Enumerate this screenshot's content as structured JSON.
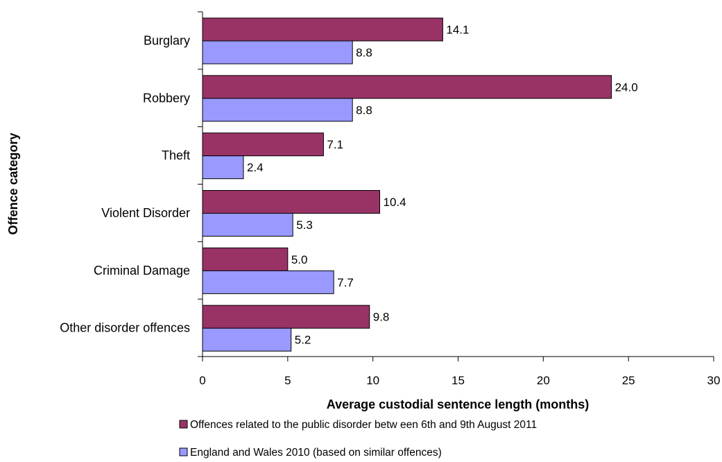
{
  "chart_data": {
    "type": "bar",
    "orientation": "horizontal",
    "title": "",
    "xlabel": "Average custodial sentence length (months)",
    "ylabel": "Offence category",
    "categories": [
      "Burglary",
      "Robbery",
      "Theft",
      "Violent Disorder",
      "Criminal Damage",
      "Other disorder offences"
    ],
    "series": [
      {
        "name": "Offences related to the public disorder betw een 6th and 9th August 2011",
        "values": [
          14.1,
          24.0,
          7.1,
          10.4,
          5.0,
          9.8
        ],
        "labels": [
          "14.1",
          "24.0",
          "7.1",
          "10.4",
          "5.0",
          "9.8"
        ],
        "color": "#993366"
      },
      {
        "name": "England and Wales 2010 (based on similar offences)",
        "values": [
          8.8,
          8.8,
          2.4,
          5.3,
          7.7,
          5.2
        ],
        "labels": [
          "8.8",
          "8.8",
          "2.4",
          "5.3",
          "7.7",
          "5.2"
        ],
        "color": "#9999ff"
      }
    ],
    "xlim": [
      0,
      30
    ],
    "xticks": [
      "0",
      "5",
      "10",
      "15",
      "20",
      "25",
      "30"
    ],
    "grid": false,
    "legend": "bottom"
  }
}
